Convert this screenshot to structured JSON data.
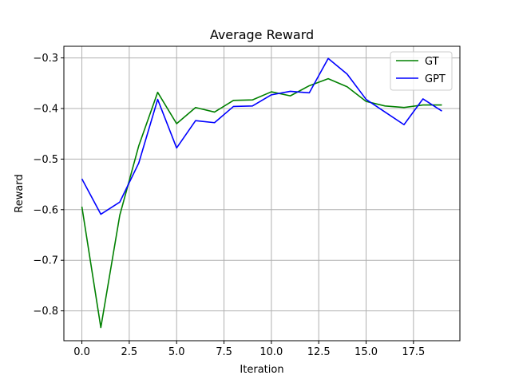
{
  "chart_data": {
    "type": "line",
    "title": "Average Reward",
    "xlabel": "Iteration",
    "ylabel": "Reward",
    "xlim": [
      -0.95,
      19.95
    ],
    "ylim": [
      -0.859,
      -0.277
    ],
    "xticks": [
      0.0,
      2.5,
      5.0,
      7.5,
      10.0,
      12.5,
      15.0,
      17.5
    ],
    "xtick_labels": [
      "0.0",
      "2.5",
      "5.0",
      "7.5",
      "10.0",
      "12.5",
      "15.0",
      "17.5"
    ],
    "yticks": [
      -0.8,
      -0.7,
      -0.6,
      -0.5,
      -0.4,
      -0.3
    ],
    "ytick_labels": [
      "−0.8",
      "−0.7",
      "−0.6",
      "−0.5",
      "−0.4",
      "−0.3"
    ],
    "grid": true,
    "legend_position": "top-right",
    "x": [
      0,
      1,
      2,
      3,
      4,
      5,
      6,
      7,
      8,
      9,
      10,
      11,
      12,
      13,
      14,
      15,
      16,
      17,
      18,
      19
    ],
    "series": [
      {
        "name": "GT",
        "color": "#008000",
        "values": [
          -0.594,
          -0.833,
          -0.611,
          -0.474,
          -0.368,
          -0.43,
          -0.398,
          -0.407,
          -0.384,
          -0.383,
          -0.367,
          -0.375,
          -0.355,
          -0.341,
          -0.357,
          -0.386,
          -0.395,
          -0.398,
          -0.393,
          -0.393
        ]
      },
      {
        "name": "GPT",
        "color": "#0000ff",
        "values": [
          -0.539,
          -0.609,
          -0.585,
          -0.508,
          -0.382,
          -0.478,
          -0.424,
          -0.428,
          -0.396,
          -0.395,
          -0.373,
          -0.366,
          -0.369,
          -0.301,
          -0.332,
          -0.382,
          -0.407,
          -0.432,
          -0.381,
          -0.405
        ]
      }
    ]
  }
}
